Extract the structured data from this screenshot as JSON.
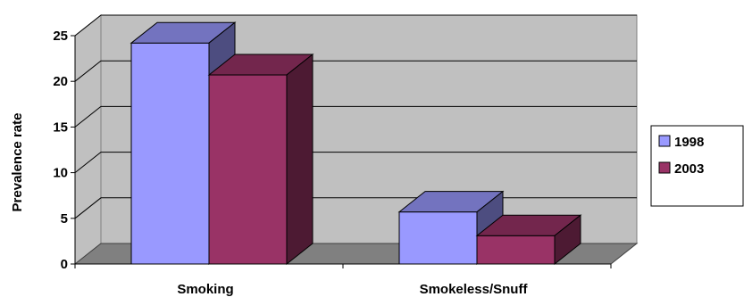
{
  "chart_data": {
    "type": "bar",
    "categories": [
      "Smoking",
      "Smokeless/Snuff"
    ],
    "series": [
      {
        "name": "1998",
        "values": [
          24.2,
          5.7
        ],
        "color": "#9999ff"
      },
      {
        "name": "2003",
        "values": [
          20.7,
          3.1
        ],
        "color": "#993366"
      }
    ],
    "title": "",
    "xlabel": "",
    "ylabel": "Prevalence rate",
    "ylim": [
      0,
      25
    ],
    "yticks": [
      "0",
      "5",
      "10",
      "15",
      "20",
      "25"
    ],
    "grid": true,
    "legend_position": "right",
    "style": "3d-clustered-column",
    "wall_color": "#c0c0c0",
    "floor_color": "#808080"
  }
}
